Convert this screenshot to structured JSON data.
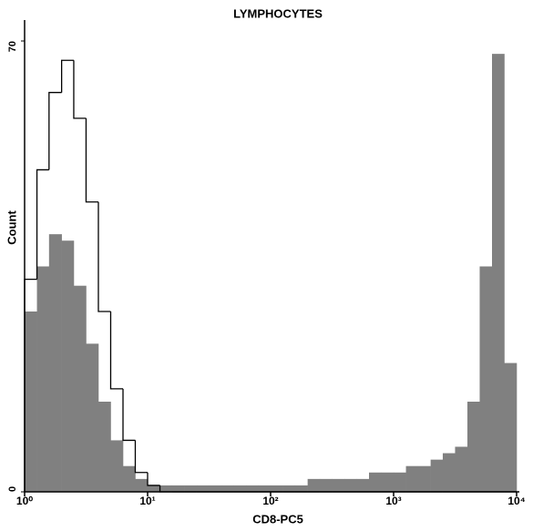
{
  "chart_data": {
    "type": "histogram",
    "title": "LYMPHOCYTES",
    "x_label": "CD8-PC5",
    "y_label": "Count",
    "log_x": true,
    "xlim": [
      1,
      10000
    ],
    "xticks": [
      {
        "value": 1,
        "label": "10⁰"
      },
      {
        "value": 10,
        "label": "10¹"
      },
      {
        "value": 100,
        "label": "10²"
      },
      {
        "value": 1000,
        "label": "10³"
      },
      {
        "value": 10000,
        "label": "10⁴"
      }
    ],
    "ylim": [
      0,
      70
    ],
    "yticks": [
      0,
      70
    ],
    "bins": [
      1,
      1.26,
      1.58,
      2,
      2.51,
      3.16,
      3.98,
      5.01,
      6.31,
      7.94,
      10,
      12.6,
      15.8,
      20,
      25.1,
      31.6,
      39.8,
      50.1,
      63.1,
      79.4,
      100,
      126,
      158,
      200,
      251,
      316,
      398,
      501,
      631,
      794,
      1000,
      1260,
      1580,
      2000,
      2510,
      3160,
      3980,
      5010,
      6310,
      7940,
      10000
    ],
    "series": [
      {
        "color": "#808080",
        "filled": true,
        "values": [
          28,
          35,
          40,
          39,
          32,
          23,
          14,
          8,
          4,
          2,
          1,
          1,
          1,
          1,
          1,
          1,
          1,
          1,
          1,
          1,
          1,
          1,
          1,
          2,
          2,
          2,
          2,
          2,
          3,
          3,
          3,
          4,
          4,
          5,
          6,
          7,
          14,
          35,
          68,
          20
        ]
      },
      {
        "color": "#000000",
        "filled": false,
        "values": [
          33,
          50,
          62,
          67,
          58,
          45,
          28,
          16,
          8,
          3,
          1,
          0,
          0,
          0,
          0,
          0,
          0,
          0,
          0,
          0,
          0,
          0,
          0,
          0,
          0,
          0,
          0,
          0,
          0,
          0,
          0,
          0,
          0,
          0,
          0,
          0,
          0,
          0,
          0,
          0
        ]
      }
    ]
  }
}
